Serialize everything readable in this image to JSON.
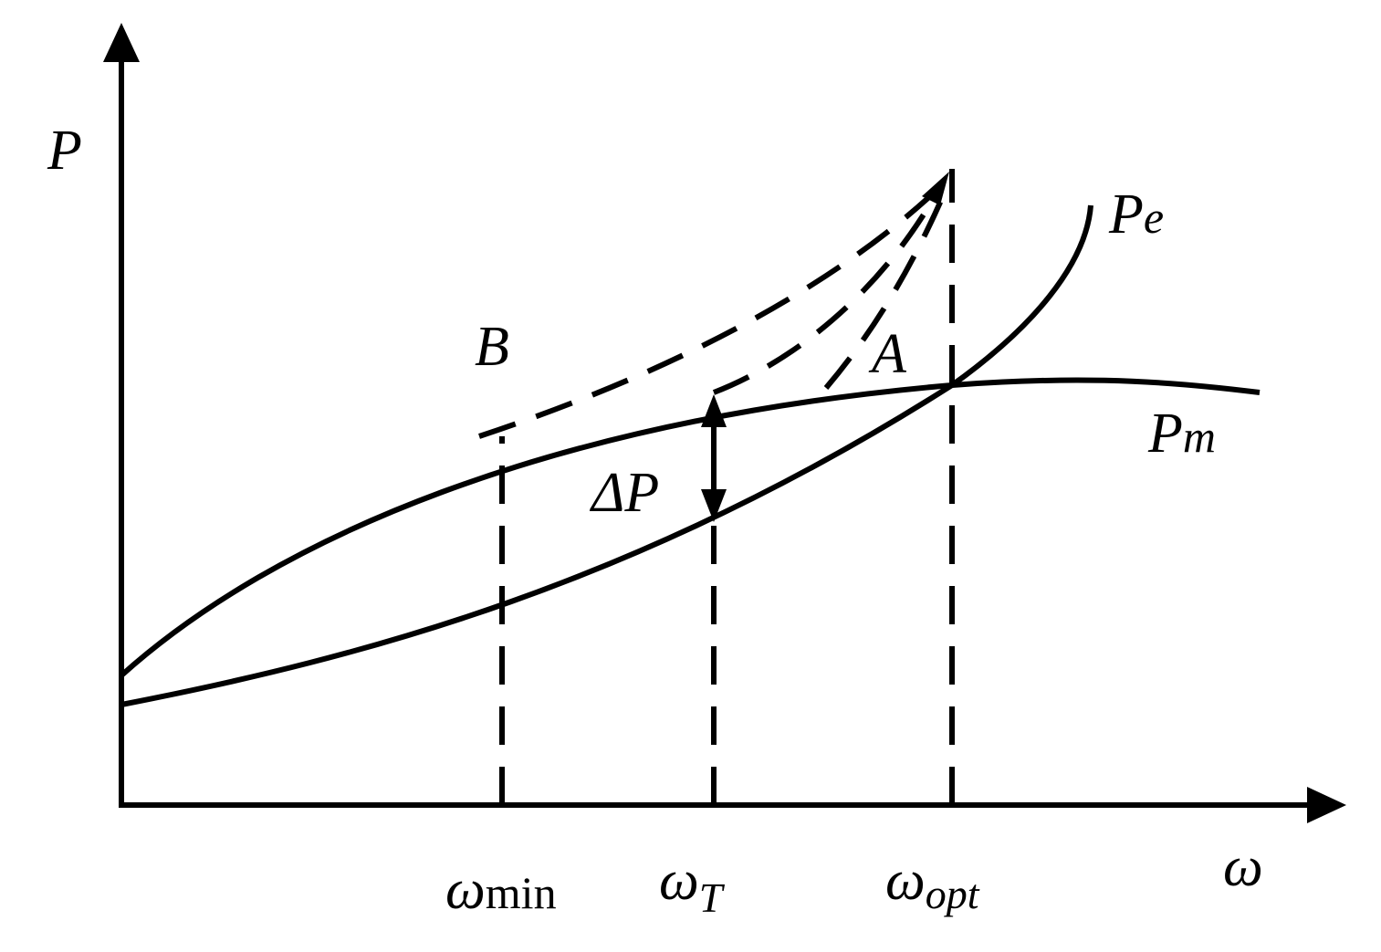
{
  "axes": {
    "y_label": "P",
    "x_label": "ω"
  },
  "curves": [
    {
      "base": "P",
      "sub": "e"
    },
    {
      "base": "P",
      "sub": "m"
    }
  ],
  "points": {
    "a": "A",
    "b": "B",
    "delta": "ΔP"
  },
  "x_marks": [
    {
      "base": "ω",
      "sub": "min"
    },
    {
      "base": "ω",
      "sub": "T"
    },
    {
      "base": "ω",
      "sub": "opt"
    }
  ]
}
